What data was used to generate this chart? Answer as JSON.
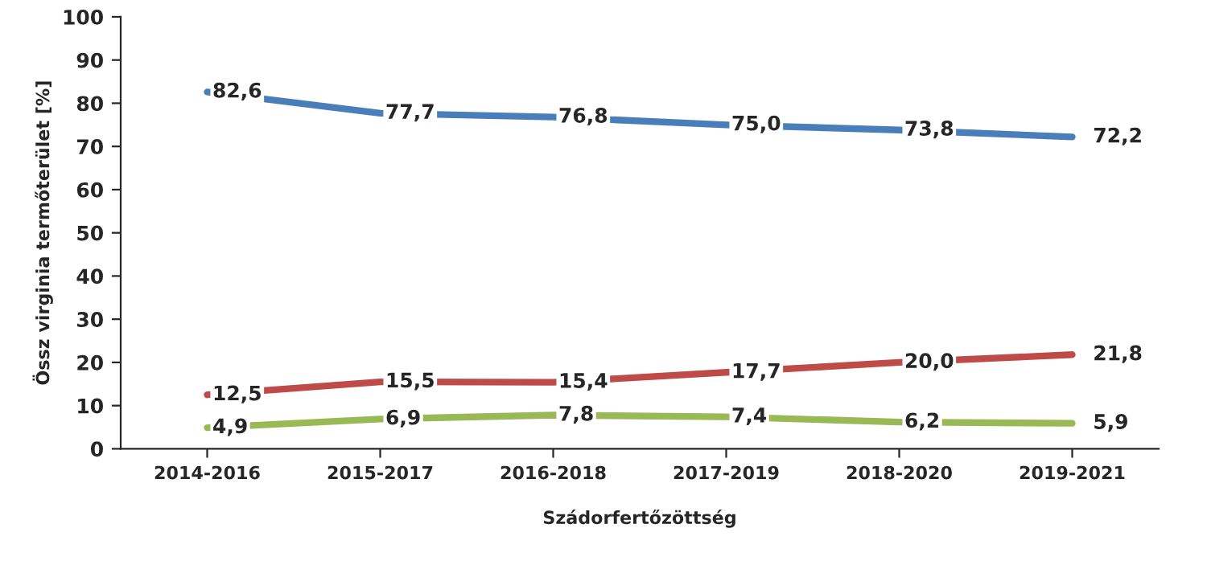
{
  "chart_data": {
    "type": "line",
    "xlabel": "Szádorfertőzöttség",
    "ylabel": "Össz virginia termőterület [%]",
    "categories": [
      "2014-2016",
      "2015-2017",
      "2016-2018",
      "2017-2019",
      "2018-2020",
      "2019-2021"
    ],
    "series": [
      {
        "color": "#4a7ebb",
        "values": [
          82.6,
          77.7,
          76.8,
          75.0,
          73.8,
          72.2
        ],
        "value_labels": [
          "82,6",
          "77,7",
          "76,8",
          "75,0",
          "73,8",
          "72,2"
        ]
      },
      {
        "color": "#be4b48",
        "values": [
          12.5,
          15.5,
          15.4,
          17.7,
          20.0,
          21.8
        ],
        "value_labels": [
          "12,5",
          "15,5",
          "15,4",
          "17,7",
          "20,0",
          "21,8"
        ]
      },
      {
        "color": "#98b954",
        "values": [
          4.9,
          6.9,
          7.8,
          7.4,
          6.2,
          5.9
        ],
        "value_labels": [
          "4,9",
          "6,9",
          "7,8",
          "7,4",
          "6,2",
          "5,9"
        ]
      }
    ],
    "ylim": [
      0,
      100
    ],
    "yticks": [
      0,
      10,
      20,
      30,
      40,
      50,
      60,
      70,
      80,
      90,
      100
    ],
    "grid": false,
    "legend": false,
    "marker": "none",
    "line_style": "solid"
  }
}
